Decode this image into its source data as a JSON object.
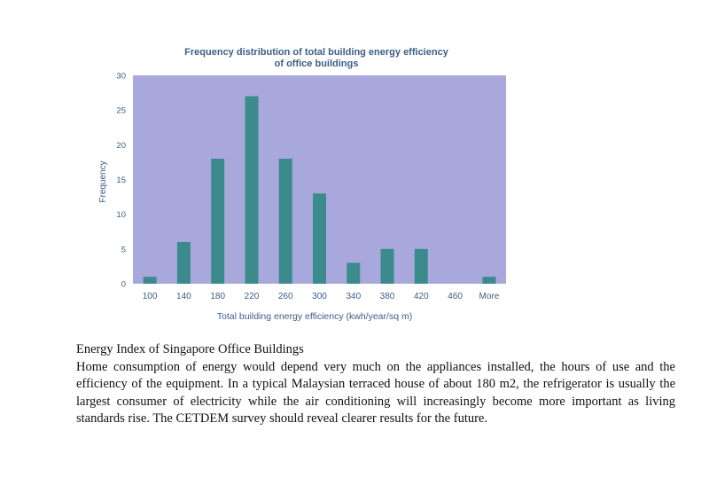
{
  "chart_data": {
    "type": "bar",
    "title": "Frequency distribution of total building energy efficiency",
    "subtitle": "of office buildings",
    "xlabel": "Total building energy efficiency (kwh/year/sq m)",
    "ylabel": "Frequency",
    "categories": [
      "100",
      "140",
      "180",
      "220",
      "260",
      "300",
      "340",
      "380",
      "420",
      "460",
      "More"
    ],
    "values": [
      1,
      6,
      18,
      27,
      18,
      13,
      3,
      5,
      5,
      0,
      1
    ],
    "yticks": [
      "0",
      "5",
      "10",
      "15",
      "20",
      "25",
      "30"
    ],
    "ylim": [
      0,
      30
    ],
    "grid": false,
    "legend": "none",
    "colors": {
      "plot_bg": "#a9a8dc",
      "bar": "#3b8a8c",
      "text": "#3b5e86",
      "frame": "#9aa0b8"
    }
  },
  "document": {
    "heading": "Energy Index of Singapore Office Buildings",
    "paragraph": "Home consumption of energy would depend very much on the appliances installed, the hours of use and the efficiency of the equipment. In a typical Malaysian terraced house of about 180 m2, the refrigerator is usually the largest consumer of electricity while the air conditioning will increasingly become more important as living standards rise. The CETDEM survey should reveal clearer results for the future."
  }
}
